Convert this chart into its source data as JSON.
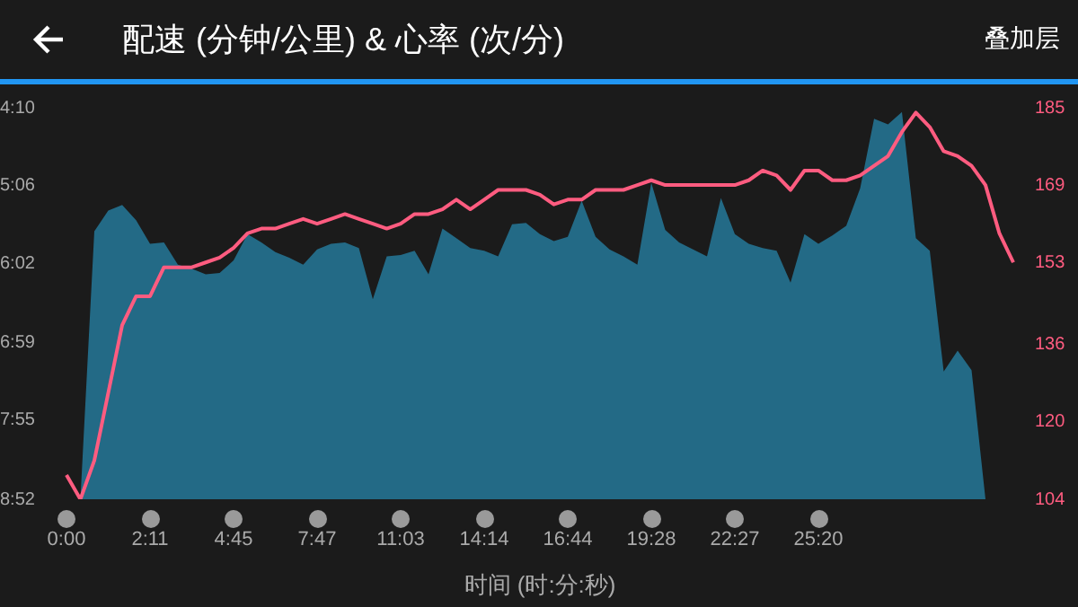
{
  "chart_data": {
    "type": "area",
    "title": "配速 (分钟/公里) & 心率 (次/分)",
    "xlabel": "时间 (时:分:秒)",
    "annotations": [
      "叠加层"
    ],
    "categories": [
      "0:00",
      null,
      null,
      null,
      null,
      null,
      "2:11",
      null,
      null,
      null,
      null,
      null,
      "4:45",
      null,
      null,
      null,
      null,
      null,
      "7:47",
      null,
      null,
      null,
      null,
      null,
      "11:03",
      null,
      null,
      null,
      null,
      null,
      "14:14",
      null,
      null,
      null,
      null,
      null,
      "16:44",
      null,
      null,
      null,
      null,
      null,
      "19:28",
      null,
      null,
      null,
      null,
      null,
      "22:27",
      null,
      null,
      null,
      null,
      null,
      "25:20",
      null,
      null,
      null,
      null,
      null,
      null,
      null,
      null,
      null,
      null,
      null,
      null,
      null,
      null
    ],
    "series": [
      {
        "color": "#236a86",
        "values": [
          null,
          532,
          339,
          324,
          320,
          331,
          348,
          347,
          363,
          366,
          370,
          369,
          360,
          341,
          347,
          354,
          358,
          363,
          352,
          348,
          347,
          351,
          388,
          357,
          356,
          353,
          370,
          337,
          344,
          351,
          353,
          357,
          334,
          333,
          341,
          346,
          343,
          317,
          343,
          352,
          357,
          363,
          304,
          338,
          347,
          352,
          357,
          315,
          341,
          348,
          351,
          353,
          376,
          341,
          348,
          342,
          335,
          308,
          258,
          262,
          253,
          344,
          353,
          440,
          425,
          439,
          532,
          null,
          null
        ]
      },
      {
        "type": "line",
        "axis": "y2",
        "color": "#ff5c80",
        "values": [
          109,
          104,
          112,
          126,
          140,
          146,
          146,
          152,
          152,
          152,
          153,
          154,
          156,
          159,
          160,
          160,
          161,
          162,
          161,
          162,
          163,
          162,
          161,
          160,
          161,
          163,
          163,
          164,
          166,
          164,
          166,
          168,
          168,
          168,
          167,
          165,
          166,
          166,
          168,
          168,
          168,
          169,
          170,
          169,
          169,
          169,
          169,
          169,
          169,
          170,
          172,
          171,
          168,
          172,
          172,
          170,
          170,
          171,
          173,
          175,
          180,
          184,
          181,
          176,
          175,
          173,
          169,
          159,
          153
        ]
      }
    ],
    "ylim": [
      532,
      250
    ],
    "yticks": [
      {
        "value": 250,
        "label": "4:10"
      },
      {
        "value": 306,
        "label": "5:06"
      },
      {
        "value": 362,
        "label": "6:02"
      },
      {
        "value": 419,
        "label": "6:59"
      },
      {
        "value": 475,
        "label": "7:55"
      },
      {
        "value": 532,
        "label": "8:52"
      }
    ],
    "y2lim": [
      104,
      185
    ],
    "y2ticks": [
      104,
      120,
      136,
      153,
      169,
      185
    ],
    "grid": false,
    "legend": false,
    "marker": "none"
  }
}
